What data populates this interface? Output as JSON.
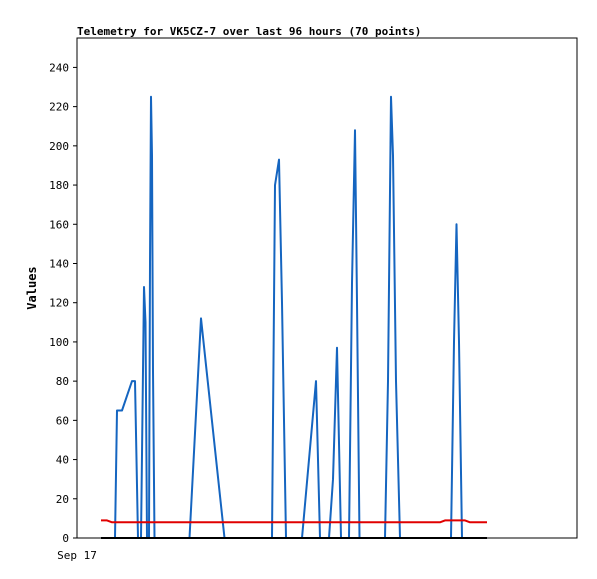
{
  "chart_data": {
    "type": "line",
    "title": "Telemetry for VK5CZ-7 over last 96 hours (70 points)",
    "xlabel": "",
    "ylabel": "Values",
    "x_ticks": [
      "Sep 17"
    ],
    "xlim": [
      0,
      100
    ],
    "ylim": [
      0,
      255
    ],
    "y_ticks": [
      0,
      20,
      40,
      60,
      80,
      100,
      120,
      140,
      160,
      180,
      200,
      220,
      240
    ],
    "grid": false,
    "legend": "none",
    "series": [
      {
        "color": "#1565c0",
        "points": [
          [
            6.4,
            0
          ],
          [
            7.6,
            0
          ],
          [
            8.0,
            65
          ],
          [
            9.0,
            65
          ],
          [
            11.0,
            80
          ],
          [
            11.6,
            80
          ],
          [
            12.2,
            0
          ],
          [
            12.8,
            0
          ],
          [
            13.4,
            128
          ],
          [
            13.7,
            110
          ],
          [
            14.0,
            0
          ],
          [
            14.4,
            0
          ],
          [
            14.6,
            140
          ],
          [
            14.8,
            225
          ],
          [
            15.0,
            195
          ],
          [
            15.2,
            85
          ],
          [
            15.5,
            0
          ],
          [
            15.8,
            0
          ],
          [
            22.5,
            0
          ],
          [
            24.8,
            112
          ],
          [
            29.5,
            0
          ],
          [
            31.0,
            0
          ],
          [
            39.0,
            0
          ],
          [
            39.6,
            180
          ],
          [
            40.4,
            193
          ],
          [
            41.0,
            120
          ],
          [
            41.8,
            0
          ],
          [
            42.8,
            0
          ],
          [
            45.0,
            0
          ],
          [
            47.8,
            80
          ],
          [
            48.6,
            0
          ],
          [
            49.4,
            0
          ],
          [
            50.4,
            0
          ],
          [
            51.2,
            30
          ],
          [
            52.0,
            97
          ],
          [
            52.8,
            0
          ],
          [
            53.8,
            0
          ],
          [
            54.4,
            0
          ],
          [
            55.0,
            130
          ],
          [
            55.6,
            208
          ],
          [
            56.0,
            120
          ],
          [
            56.5,
            0
          ],
          [
            57.6,
            0
          ],
          [
            61.6,
            0
          ],
          [
            62.2,
            80
          ],
          [
            62.8,
            225
          ],
          [
            63.2,
            195
          ],
          [
            63.8,
            80
          ],
          [
            64.6,
            0
          ],
          [
            65.6,
            0
          ],
          [
            74.8,
            0
          ],
          [
            75.4,
            100
          ],
          [
            75.9,
            160
          ],
          [
            76.4,
            100
          ],
          [
            77.0,
            0
          ],
          [
            78.0,
            0
          ]
        ]
      },
      {
        "color": "#e00000",
        "points": [
          [
            4.8,
            9
          ],
          [
            6.0,
            9
          ],
          [
            7.0,
            8
          ],
          [
            18.0,
            8
          ],
          [
            40.0,
            8
          ],
          [
            60.0,
            8
          ],
          [
            72.6,
            8
          ],
          [
            73.6,
            9
          ],
          [
            77.6,
            9
          ],
          [
            78.6,
            8
          ],
          [
            82.0,
            8
          ]
        ]
      },
      {
        "color": "#000000",
        "points": [
          [
            4.8,
            0
          ],
          [
            82.0,
            0
          ]
        ]
      }
    ]
  }
}
